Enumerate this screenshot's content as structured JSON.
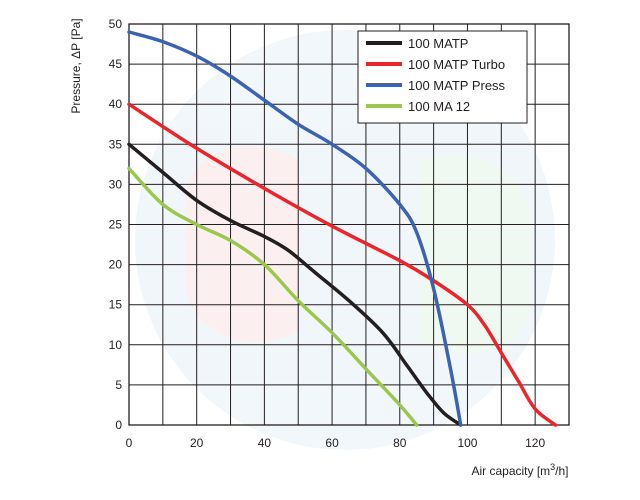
{
  "chart_data": {
    "type": "line",
    "title": "",
    "xlabel_main": "Air capacity [m",
    "xlabel_sup": "3",
    "xlabel_tail": "/h]",
    "ylabel": "Pressure, ΔP [Pa]",
    "xlim": [
      0,
      130
    ],
    "ylim": [
      0,
      50
    ],
    "x_ticks": [
      0,
      20,
      40,
      60,
      80,
      100,
      120
    ],
    "y_ticks": [
      0,
      5,
      10,
      15,
      20,
      25,
      30,
      35,
      40,
      45,
      50
    ],
    "grid": true,
    "legend_position": "top-right",
    "series": [
      {
        "name": "100 MATP",
        "color": "#231f20",
        "points": [
          [
            0,
            35
          ],
          [
            10,
            31.5
          ],
          [
            20,
            28
          ],
          [
            30,
            25.5
          ],
          [
            40,
            23.5
          ],
          [
            47,
            21.8
          ],
          [
            55,
            19
          ],
          [
            65,
            15.5
          ],
          [
            75,
            11.5
          ],
          [
            82,
            7.5
          ],
          [
            88,
            4
          ],
          [
            93,
            1.5
          ],
          [
            98,
            0
          ]
        ]
      },
      {
        "name": "100 MATP Turbo",
        "color": "#e8262b",
        "points": [
          [
            0,
            40
          ],
          [
            20,
            34.5
          ],
          [
            40,
            29.5
          ],
          [
            60,
            24.8
          ],
          [
            80,
            20.5
          ],
          [
            90,
            18
          ],
          [
            100,
            15
          ],
          [
            105,
            12.5
          ],
          [
            110,
            9
          ],
          [
            115,
            5.5
          ],
          [
            120,
            2
          ],
          [
            126,
            0
          ]
        ]
      },
      {
        "name": "100 MATP Press",
        "color": "#3b63b0",
        "points": [
          [
            0,
            49
          ],
          [
            10,
            47.8
          ],
          [
            20,
            46
          ],
          [
            30,
            43.5
          ],
          [
            40,
            40.5
          ],
          [
            50,
            37.5
          ],
          [
            60,
            35
          ],
          [
            70,
            32
          ],
          [
            80,
            27.5
          ],
          [
            85,
            24
          ],
          [
            90,
            17
          ],
          [
            95,
            7
          ],
          [
            98,
            0
          ]
        ]
      },
      {
        "name": "100 MA 12",
        "color": "#9cc74f",
        "points": [
          [
            0,
            32
          ],
          [
            10,
            27.5
          ],
          [
            20,
            25
          ],
          [
            30,
            23
          ],
          [
            40,
            20
          ],
          [
            50,
            15.5
          ],
          [
            60,
            11.5
          ],
          [
            70,
            7
          ],
          [
            80,
            2.5
          ],
          [
            85,
            0
          ]
        ]
      }
    ]
  }
}
